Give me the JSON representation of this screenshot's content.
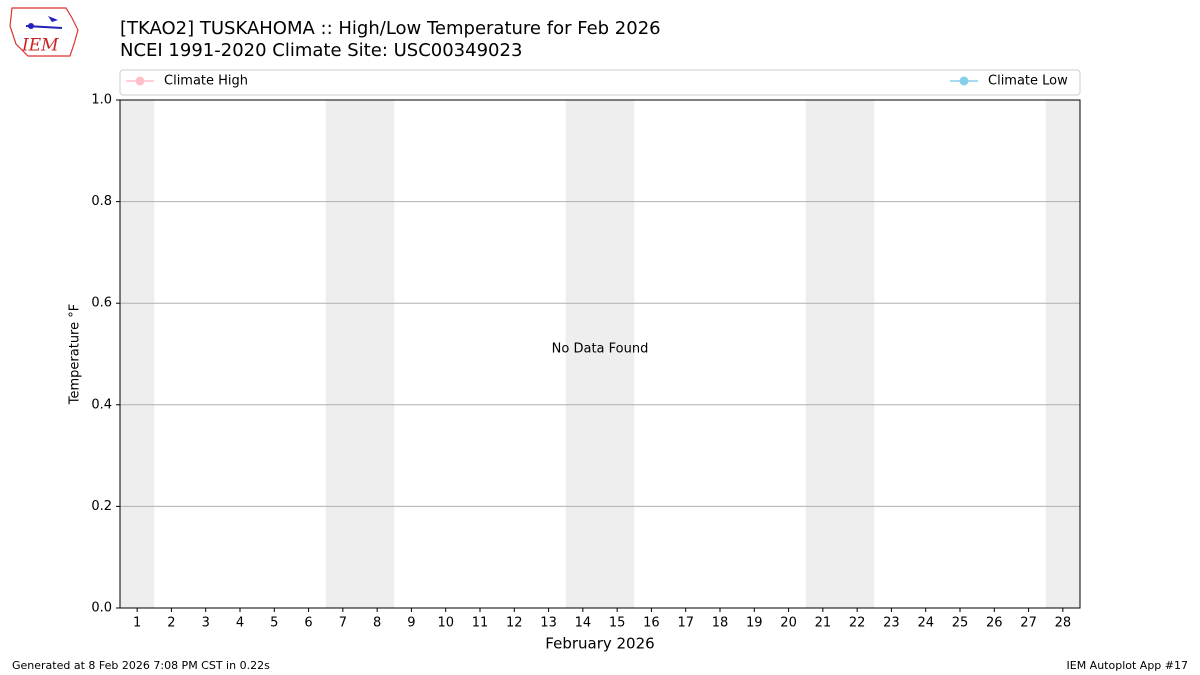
{
  "logo": {
    "text": "IEM"
  },
  "chart_data": {
    "type": "line",
    "title": "[TKAO2] TUSKAHOMA :: High/Low Temperature for Feb 2026",
    "subtitle": "NCEI 1991-2020 Climate Site: USC00349023",
    "xlabel": "February 2026",
    "ylabel": "Temperature °F",
    "annotation": "No Data Found",
    "categories": [
      "1",
      "2",
      "3",
      "4",
      "5",
      "6",
      "7",
      "8",
      "9",
      "10",
      "11",
      "12",
      "13",
      "14",
      "15",
      "16",
      "17",
      "18",
      "19",
      "20",
      "21",
      "22",
      "23",
      "24",
      "25",
      "26",
      "27",
      "28"
    ],
    "shaded_categories": [
      "1",
      "7",
      "8",
      "14",
      "15",
      "21",
      "22",
      "28"
    ],
    "series": [
      {
        "name": "Climate High",
        "color": "#ffc0cb",
        "values": [
          null,
          null,
          null,
          null,
          null,
          null,
          null,
          null,
          null,
          null,
          null,
          null,
          null,
          null,
          null,
          null,
          null,
          null,
          null,
          null,
          null,
          null,
          null,
          null,
          null,
          null,
          null,
          null
        ]
      },
      {
        "name": "Climate Low",
        "color": "#87ceeb",
        "values": [
          null,
          null,
          null,
          null,
          null,
          null,
          null,
          null,
          null,
          null,
          null,
          null,
          null,
          null,
          null,
          null,
          null,
          null,
          null,
          null,
          null,
          null,
          null,
          null,
          null,
          null,
          null,
          null
        ]
      }
    ],
    "ylim": [
      0,
      1
    ],
    "yticks": [
      {
        "value": 0,
        "label": "0.0"
      },
      0.2,
      0.4,
      0.6,
      0.8,
      {
        "value": 1,
        "label": "1.0"
      }
    ],
    "grid": true
  },
  "footer": {
    "left": "Generated at 8 Feb 2026 7:08 PM CST in 0.22s",
    "right": "IEM Autoplot App #17"
  }
}
